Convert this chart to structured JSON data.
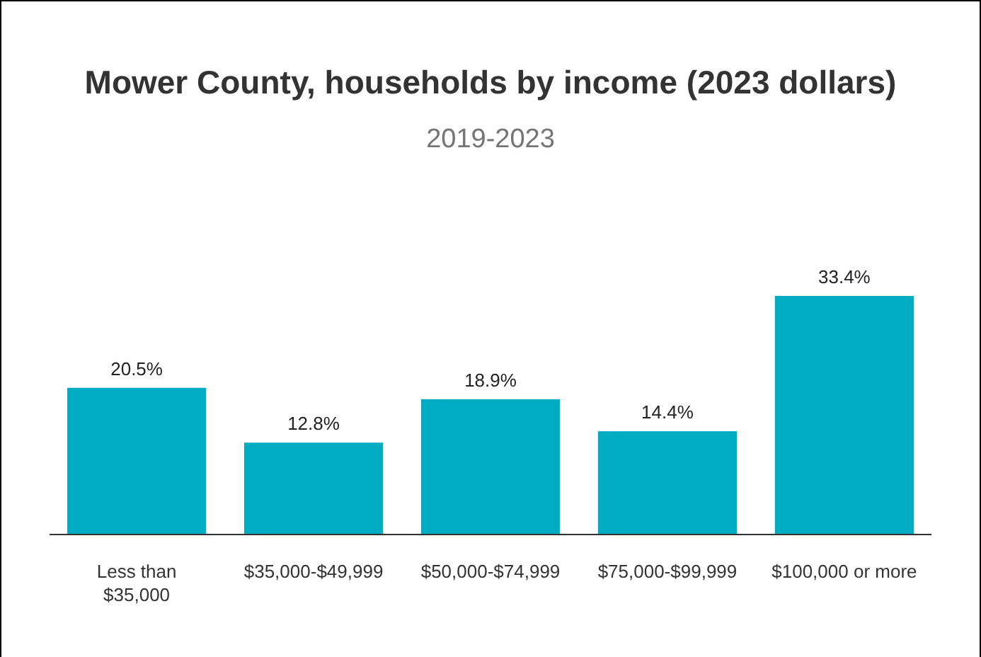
{
  "chart_data": {
    "type": "bar",
    "title": "Mower County, households by income (2023 dollars)",
    "subtitle": "2019-2023",
    "categories": [
      "Less than $35,000",
      "$35,000-$49,999",
      "$50,000-$74,999",
      "$75,000-$99,999",
      "$100,000 or more"
    ],
    "values": [
      20.5,
      12.8,
      18.9,
      14.4,
      33.4
    ],
    "value_labels": [
      "20.5%",
      "12.8%",
      "18.9%",
      "14.4%",
      "33.4%"
    ],
    "color": "#00acc1"
  }
}
